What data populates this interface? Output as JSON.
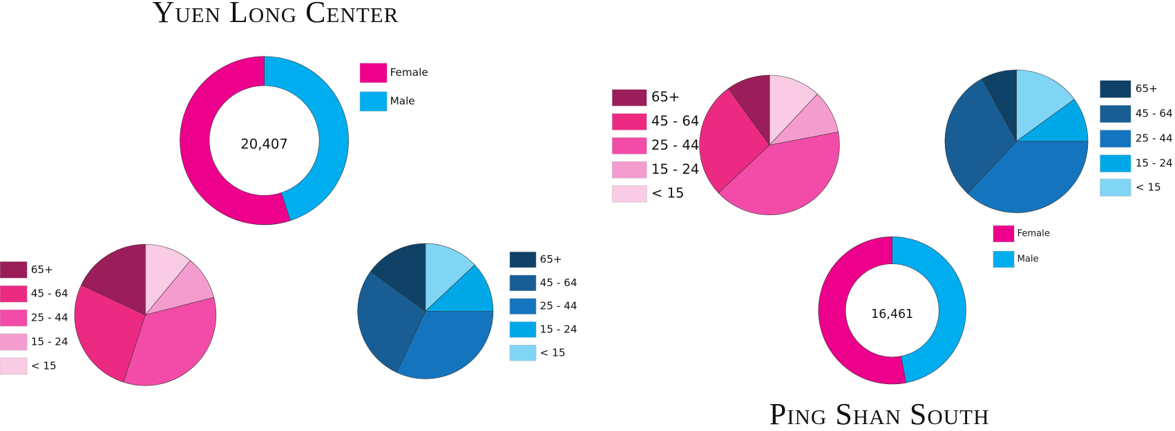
{
  "chart_data": [
    {
      "type": "donut",
      "title": "Yuen Long Center",
      "center_text": "20,407",
      "categories": [
        "Female",
        "Male"
      ],
      "values": [
        55,
        45
      ],
      "colors": [
        "#ec008c",
        "#00adef"
      ]
    },
    {
      "type": "pie",
      "categories": [
        "65+",
        "45 - 64",
        "25 - 44",
        "15 - 24",
        "< 15"
      ],
      "values": [
        18,
        27,
        34,
        10,
        11
      ],
      "colors": [
        "#9b1d5a",
        "#ec2a82",
        "#f24ca8",
        "#f59ccf",
        "#f9cbe5"
      ]
    },
    {
      "type": "pie",
      "categories": [
        "65+",
        "45 - 64",
        "25 - 44",
        "15 - 24",
        "< 15"
      ],
      "values": [
        15,
        28,
        32,
        12,
        13
      ],
      "colors": [
        "#0f4266",
        "#185e94",
        "#1474be",
        "#00a8e8",
        "#80d5f5"
      ]
    },
    {
      "type": "pie",
      "categories": [
        "65+",
        "45 - 64",
        "25 - 44",
        "15 - 24",
        "< 15"
      ],
      "values": [
        10,
        27,
        41,
        10,
        12
      ],
      "colors": [
        "#9b1d5a",
        "#ec2a82",
        "#f24ca8",
        "#f59ccf",
        "#f9cbe5"
      ]
    },
    {
      "type": "pie",
      "categories": [
        "65+",
        "45 - 64",
        "25 - 44",
        "15 - 24",
        "< 15"
      ],
      "values": [
        8,
        30,
        37,
        10,
        15
      ],
      "colors": [
        "#0f4266",
        "#185e94",
        "#1474be",
        "#00a8e8",
        "#80d5f5"
      ]
    },
    {
      "type": "donut",
      "title": "Ping Shan South",
      "center_text": "16,461",
      "categories": [
        "Female",
        "Male"
      ],
      "values": [
        53,
        47
      ],
      "colors": [
        "#ec008c",
        "#00adef"
      ]
    }
  ]
}
